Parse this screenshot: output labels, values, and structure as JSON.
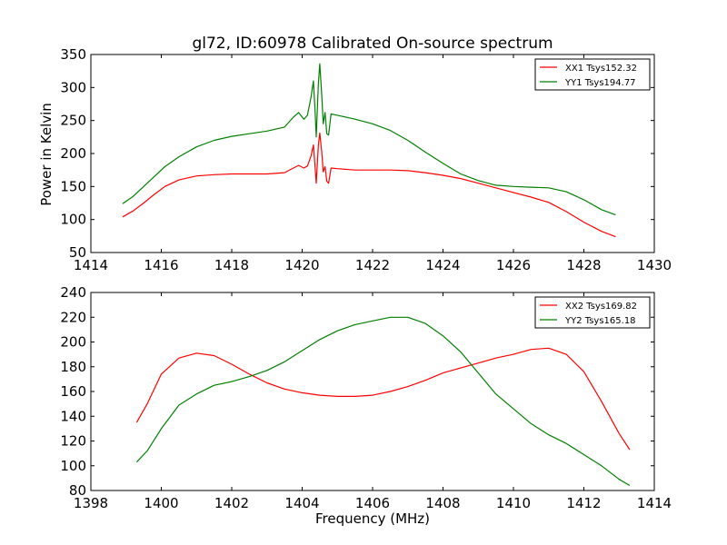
{
  "figure": {
    "title": "gl72, ID:60978 Calibrated On-source spectrum",
    "ylabel": "Power in Kelvin",
    "xlabel": "Frequency (MHz)"
  },
  "chart_data": [
    {
      "type": "line",
      "title": "gl72, ID:60978 Calibrated On-source spectrum",
      "xlabel": "",
      "ylabel": "Power in Kelvin",
      "xlim": [
        1414,
        1430
      ],
      "ylim": [
        50,
        350
      ],
      "xticks": [
        1414,
        1416,
        1418,
        1420,
        1422,
        1424,
        1426,
        1428,
        1430
      ],
      "yticks": [
        50,
        100,
        150,
        200,
        250,
        300,
        350
      ],
      "grid": false,
      "legend": "top-right",
      "series": [
        {
          "name": "XX1 Tsys152.32",
          "color": "#ff0000",
          "points": [
            [
              1414.9,
              104
            ],
            [
              1415.2,
              113
            ],
            [
              1415.5,
              125
            ],
            [
              1415.8,
              138
            ],
            [
              1416.1,
              150
            ],
            [
              1416.5,
              160
            ],
            [
              1417.0,
              166
            ],
            [
              1417.5,
              168
            ],
            [
              1418.0,
              169
            ],
            [
              1418.5,
              169
            ],
            [
              1419.0,
              169
            ],
            [
              1419.5,
              171
            ],
            [
              1419.75,
              178
            ],
            [
              1419.9,
              182
            ],
            [
              1420.05,
              178
            ],
            [
              1420.15,
              181
            ],
            [
              1420.25,
              196
            ],
            [
              1420.32,
              213
            ],
            [
              1420.37,
              178
            ],
            [
              1420.4,
              155
            ],
            [
              1420.46,
              212
            ],
            [
              1420.5,
              231
            ],
            [
              1420.56,
              200
            ],
            [
              1420.6,
              172
            ],
            [
              1420.65,
              180
            ],
            [
              1420.7,
              158
            ],
            [
              1420.75,
              155
            ],
            [
              1420.82,
              178
            ],
            [
              1421.0,
              177
            ],
            [
              1421.5,
              175
            ],
            [
              1422.0,
              175
            ],
            [
              1422.5,
              175
            ],
            [
              1423.0,
              174
            ],
            [
              1423.5,
              171
            ],
            [
              1424.0,
              167
            ],
            [
              1424.5,
              162
            ],
            [
              1425.0,
              155
            ],
            [
              1425.5,
              148
            ],
            [
              1426.0,
              141
            ],
            [
              1426.5,
              134
            ],
            [
              1427.0,
              126
            ],
            [
              1427.5,
              112
            ],
            [
              1428.0,
              96
            ],
            [
              1428.5,
              82
            ],
            [
              1428.9,
              74
            ]
          ]
        },
        {
          "name": "YY1 Tsys194.77",
          "color": "#008000",
          "points": [
            [
              1414.9,
              124
            ],
            [
              1415.2,
              135
            ],
            [
              1415.5,
              150
            ],
            [
              1415.8,
              165
            ],
            [
              1416.1,
              180
            ],
            [
              1416.5,
              195
            ],
            [
              1417.0,
              210
            ],
            [
              1417.5,
              220
            ],
            [
              1418.0,
              226
            ],
            [
              1418.5,
              230
            ],
            [
              1419.0,
              234
            ],
            [
              1419.5,
              240
            ],
            [
              1419.75,
              255
            ],
            [
              1419.9,
              262
            ],
            [
              1420.05,
              252
            ],
            [
              1420.15,
              258
            ],
            [
              1420.25,
              285
            ],
            [
              1420.32,
              310
            ],
            [
              1420.37,
              262
            ],
            [
              1420.4,
              225
            ],
            [
              1420.46,
              305
            ],
            [
              1420.5,
              336
            ],
            [
              1420.56,
              285
            ],
            [
              1420.6,
              245
            ],
            [
              1420.65,
              262
            ],
            [
              1420.7,
              230
            ],
            [
              1420.75,
              228
            ],
            [
              1420.82,
              260
            ],
            [
              1421.0,
              258
            ],
            [
              1421.5,
              252
            ],
            [
              1422.0,
              245
            ],
            [
              1422.5,
              235
            ],
            [
              1423.0,
              220
            ],
            [
              1423.5,
              202
            ],
            [
              1424.0,
              185
            ],
            [
              1424.5,
              169
            ],
            [
              1425.0,
              159
            ],
            [
              1425.5,
              152
            ],
            [
              1426.0,
              150
            ],
            [
              1426.5,
              149
            ],
            [
              1427.0,
              148
            ],
            [
              1427.5,
              142
            ],
            [
              1428.0,
              130
            ],
            [
              1428.5,
              115
            ],
            [
              1428.9,
              107
            ]
          ]
        }
      ]
    },
    {
      "type": "line",
      "title": "",
      "xlabel": "Frequency (MHz)",
      "ylabel": "",
      "xlim": [
        1398,
        1414
      ],
      "ylim": [
        80,
        240
      ],
      "xticks": [
        1398,
        1400,
        1402,
        1404,
        1406,
        1408,
        1410,
        1412,
        1414
      ],
      "yticks": [
        80,
        100,
        120,
        140,
        160,
        180,
        200,
        220,
        240
      ],
      "grid": false,
      "legend": "top-right",
      "series": [
        {
          "name": "XX2 Tsys169.82",
          "color": "#ff0000",
          "points": [
            [
              1399.3,
              135
            ],
            [
              1399.6,
              150
            ],
            [
              1400.0,
              174
            ],
            [
              1400.5,
              187
            ],
            [
              1401.0,
              191
            ],
            [
              1401.5,
              189
            ],
            [
              1402.0,
              182
            ],
            [
              1402.5,
              174
            ],
            [
              1403.0,
              167
            ],
            [
              1403.5,
              162
            ],
            [
              1404.0,
              159
            ],
            [
              1404.5,
              157
            ],
            [
              1405.0,
              156
            ],
            [
              1405.5,
              156
            ],
            [
              1406.0,
              157
            ],
            [
              1406.5,
              160
            ],
            [
              1407.0,
              164
            ],
            [
              1407.5,
              169
            ],
            [
              1408.0,
              175
            ],
            [
              1408.5,
              179
            ],
            [
              1409.0,
              183
            ],
            [
              1409.5,
              187
            ],
            [
              1410.0,
              190
            ],
            [
              1410.5,
              194
            ],
            [
              1411.0,
              195
            ],
            [
              1411.5,
              190
            ],
            [
              1412.0,
              176
            ],
            [
              1412.5,
              152
            ],
            [
              1413.0,
              126
            ],
            [
              1413.3,
              113
            ]
          ]
        },
        {
          "name": "YY2 Tsys165.18",
          "color": "#008000",
          "points": [
            [
              1399.3,
              103
            ],
            [
              1399.6,
              112
            ],
            [
              1400.0,
              130
            ],
            [
              1400.5,
              149
            ],
            [
              1401.0,
              158
            ],
            [
              1401.5,
              165
            ],
            [
              1402.0,
              168
            ],
            [
              1402.5,
              172
            ],
            [
              1403.0,
              177
            ],
            [
              1403.5,
              184
            ],
            [
              1404.0,
              193
            ],
            [
              1404.5,
              202
            ],
            [
              1405.0,
              209
            ],
            [
              1405.5,
              214
            ],
            [
              1406.0,
              217
            ],
            [
              1406.5,
              220
            ],
            [
              1407.0,
              220
            ],
            [
              1407.5,
              215
            ],
            [
              1408.0,
              205
            ],
            [
              1408.5,
              192
            ],
            [
              1409.0,
              175
            ],
            [
              1409.5,
              158
            ],
            [
              1410.0,
              146
            ],
            [
              1410.5,
              134
            ],
            [
              1411.0,
              125
            ],
            [
              1411.5,
              118
            ],
            [
              1412.0,
              109
            ],
            [
              1412.5,
              100
            ],
            [
              1413.0,
              89
            ],
            [
              1413.3,
              84
            ]
          ]
        }
      ]
    }
  ]
}
